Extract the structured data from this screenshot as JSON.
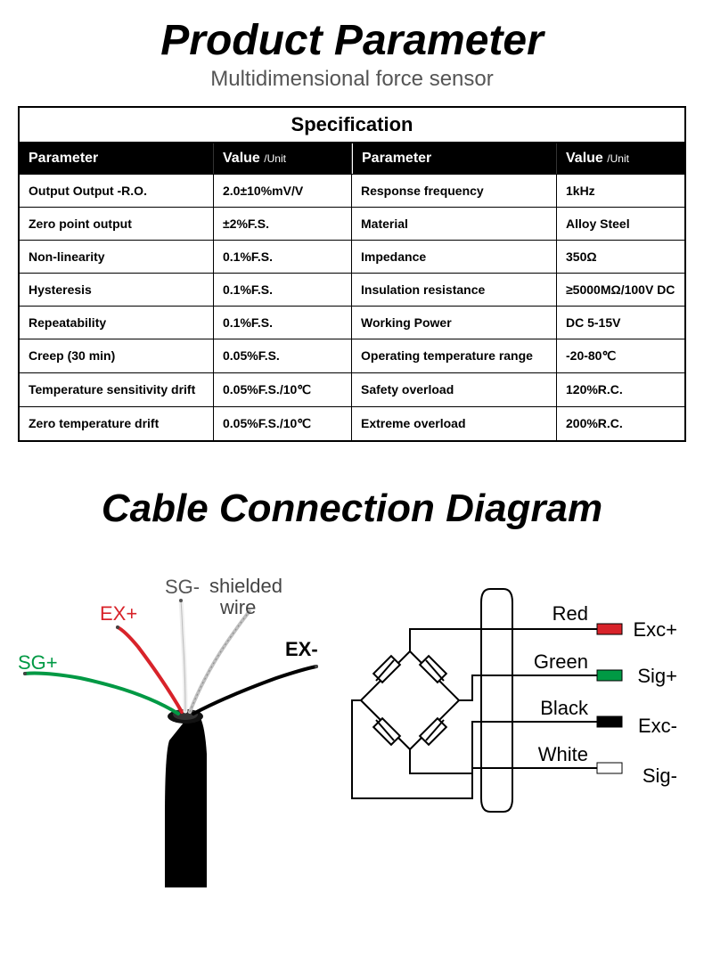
{
  "header": {
    "title": "Product Parameter",
    "subtitle": "Multidimensional force sensor"
  },
  "spec_table": {
    "title": "Specification",
    "col_headers": {
      "param": "Parameter",
      "value_prefix": "Value",
      "value_unit": "/Unit"
    },
    "rows_left": [
      {
        "param": "Output Output -R.O.",
        "value": "2.0±10%mV/V"
      },
      {
        "param": "Zero point output",
        "value": "±2%F.S."
      },
      {
        "param": "Non-linearity",
        "value": "0.1%F.S."
      },
      {
        "param": "Hysteresis",
        "value": "0.1%F.S."
      },
      {
        "param": "Repeatability",
        "value": "0.1%F.S."
      },
      {
        "param": "Creep (30 min)",
        "value": "0.05%F.S."
      },
      {
        "param": "Temperature sensitivity drift",
        "value": "0.05%F.S./10℃"
      },
      {
        "param": "Zero temperature drift",
        "value": "0.05%F.S./10℃"
      }
    ],
    "rows_right": [
      {
        "param": "Response frequency",
        "value": "1kHz"
      },
      {
        "param": "Material",
        "value": "Alloy Steel"
      },
      {
        "param": "Impedance",
        "value": "350Ω"
      },
      {
        "param": "Insulation resistance",
        "value": "≥5000MΩ/100V DC"
      },
      {
        "param": "Working Power",
        "value": "DC 5-15V"
      },
      {
        "param": "Operating temperature range",
        "value": "-20-80℃"
      },
      {
        "param": "Safety overload",
        "value": "120%R.C."
      },
      {
        "param": "Extreme overload",
        "value": "200%R.C."
      }
    ]
  },
  "diagram": {
    "title": "Cable Connection Diagram",
    "wire_labels": {
      "sg_plus": "SG+",
      "ex_plus": "EX+",
      "sg_minus": "SG-",
      "shielded": "shielded",
      "wire": "wire",
      "ex_minus": "EX-"
    },
    "wire_colors": {
      "sg_plus": "#009944",
      "ex_plus": "#d8232a",
      "sg_minus": "#f5f5f5",
      "shield": "#b0b0b0",
      "ex_minus": "#000000",
      "sheath": "#000000"
    },
    "schematic": {
      "pins": [
        {
          "name": "Red",
          "signal": "Exc+",
          "color": "#d8232a"
        },
        {
          "name": "Green",
          "signal": "Sig+",
          "color": "#009944"
        },
        {
          "name": "Black",
          "signal": "Exc-",
          "color": "#000000"
        },
        {
          "name": "White",
          "signal": "Sig-",
          "color": "#ffffff"
        }
      ],
      "stroke": "#000000"
    }
  },
  "colors": {
    "bg": "#ffffff",
    "text": "#000000",
    "header_bg": "#000000",
    "header_fg": "#ffffff",
    "border": "#000000",
    "subtitle": "#555555"
  }
}
